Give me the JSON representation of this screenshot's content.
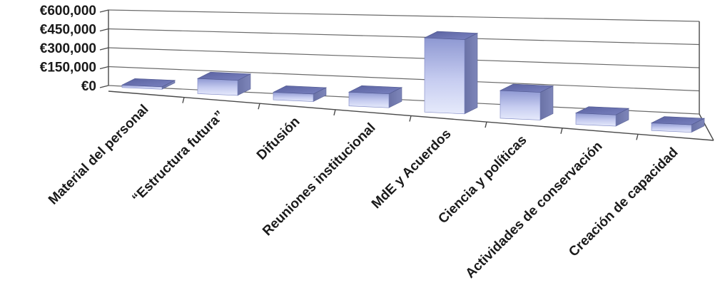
{
  "chart_data": {
    "type": "bar",
    "categories": [
      "Material del personal",
      "“Estructura futura”",
      "Difusión",
      "Reuniones institucional",
      "MdE y Acuerdos",
      "Ciencia y políticas",
      "Actividades de conservación",
      "Creación de capacidad"
    ],
    "values": [
      20000,
      120000,
      60000,
      110000,
      590000,
      220000,
      90000,
      60000
    ],
    "yticks": [
      "€0",
      "€150,000",
      "€300,000",
      "€450,000",
      "€600,000"
    ],
    "ylim": [
      0,
      600000
    ],
    "grid": true,
    "legend": "none",
    "style": "3d-column",
    "bar_color": "#b7c1ea"
  }
}
